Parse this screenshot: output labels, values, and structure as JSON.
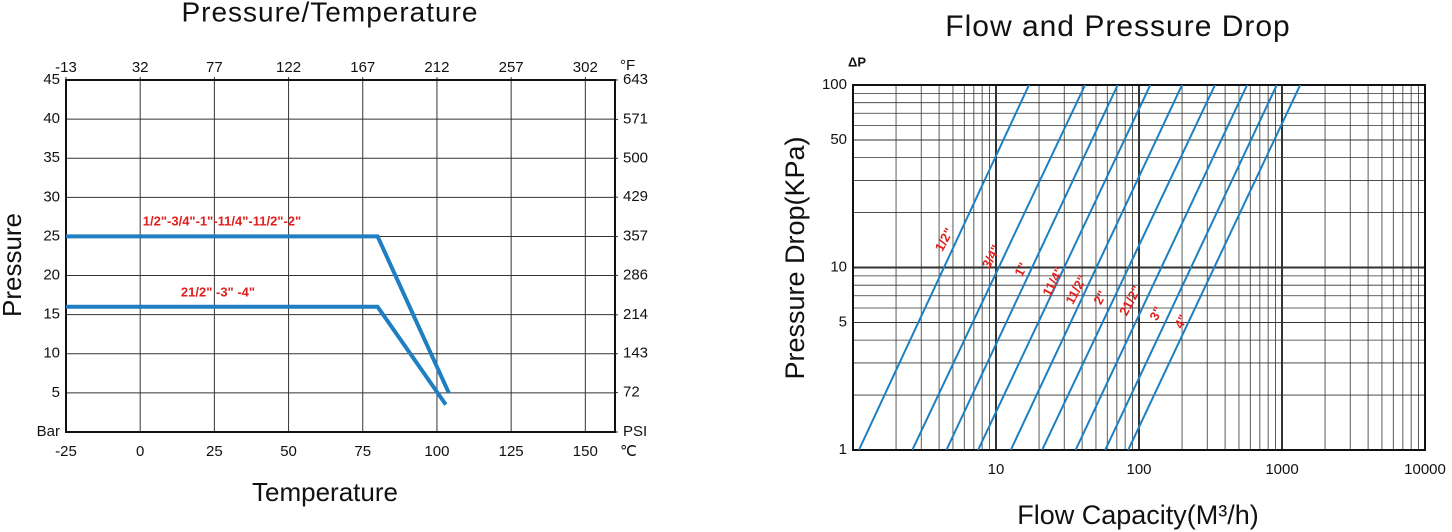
{
  "chart_data": [
    {
      "type": "line",
      "title": "Pressure/Temperature",
      "x_label": "Temperature",
      "y_label": "Pressure",
      "x_unit": "℃",
      "x2_unit": "°F",
      "xlim": [
        -25,
        160
      ],
      "xticks": [
        -25,
        0,
        25,
        50,
        75,
        100,
        125,
        150
      ],
      "x2lim": [
        -13,
        320
      ],
      "x2ticks": [
        -13,
        32,
        77,
        122,
        167,
        212,
        257,
        302
      ],
      "ylim": [
        0,
        45
      ],
      "yticks": [
        {
          "value": 0,
          "label": "Bar"
        },
        5,
        10,
        15,
        20,
        25,
        30,
        35,
        40,
        45
      ],
      "y2lim": [
        0,
        643
      ],
      "y2ticks": [
        {
          "value": 0,
          "label": "PSI"
        },
        72,
        143,
        214,
        286,
        357,
        429,
        500,
        571,
        643
      ],
      "grid": true,
      "label_color": "#e0201c",
      "series": [
        {
          "name": "1/2\"-3/4\"-1\"-11/4\"-11/2\"-2\"",
          "color": "#1f7fc2",
          "x": [
            -25,
            80,
            104
          ],
          "values": [
            25,
            25,
            5
          ]
        },
        {
          "name": "21/2\" -3\" -4\"",
          "color": "#1f7fc2",
          "x": [
            -25,
            80,
            103
          ],
          "values": [
            16,
            16,
            3.5
          ]
        }
      ]
    },
    {
      "type": "line",
      "title": "Flow and Pressure Drop",
      "x_label": "Flow Capacity(M³/h)",
      "y_label": "Pressure Drop(KPa)",
      "y_unit": "ΔP",
      "log_x": true,
      "log_y": true,
      "xlim": [
        1,
        10000
      ],
      "xticks": [
        10,
        100,
        1000,
        10000
      ],
      "xminor": [
        2,
        3,
        4,
        5,
        6,
        7,
        8,
        9,
        20,
        30,
        40,
        50,
        60,
        70,
        80,
        90,
        200,
        300,
        400,
        500,
        600,
        700,
        800,
        900,
        2000,
        3000,
        4000,
        5000,
        6000,
        7000,
        8000,
        9000
      ],
      "ylim": [
        1,
        100
      ],
      "yticks": [
        1,
        5,
        10,
        50,
        100
      ],
      "yminor": [
        2,
        3,
        4,
        6,
        7,
        8,
        9,
        20,
        30,
        40,
        60,
        70,
        80,
        90
      ],
      "grid": true,
      "label_color": "#e0201c",
      "series": [
        {
          "name": "1/2\"",
          "color": "#1f7fc2",
          "x": [
            1.1,
            17
          ],
          "values": [
            1,
            100
          ]
        },
        {
          "name": "3/4\"",
          "color": "#1f7fc2",
          "x": [
            2.6,
            42
          ],
          "values": [
            1,
            100
          ]
        },
        {
          "name": "1\"",
          "color": "#1f7fc2",
          "x": [
            4.5,
            71
          ],
          "values": [
            1,
            100
          ]
        },
        {
          "name": "11/4\"",
          "color": "#1f7fc2",
          "x": [
            7.5,
            120
          ],
          "values": [
            1,
            100
          ]
        },
        {
          "name": "11/2\"",
          "color": "#1f7fc2",
          "x": [
            12.7,
            200
          ],
          "values": [
            1,
            100
          ]
        },
        {
          "name": "2\"",
          "color": "#1f7fc2",
          "x": [
            21,
            340
          ],
          "values": [
            1,
            100
          ]
        },
        {
          "name": "21/2\"",
          "color": "#1f7fc2",
          "x": [
            36,
            570
          ],
          "values": [
            1,
            100
          ]
        },
        {
          "name": "3\"",
          "color": "#1f7fc2",
          "x": [
            58,
            920
          ],
          "values": [
            1,
            100
          ]
        },
        {
          "name": "4\"",
          "color": "#1f7fc2",
          "x": [
            84,
            1340
          ],
          "values": [
            1,
            100
          ]
        }
      ]
    }
  ]
}
